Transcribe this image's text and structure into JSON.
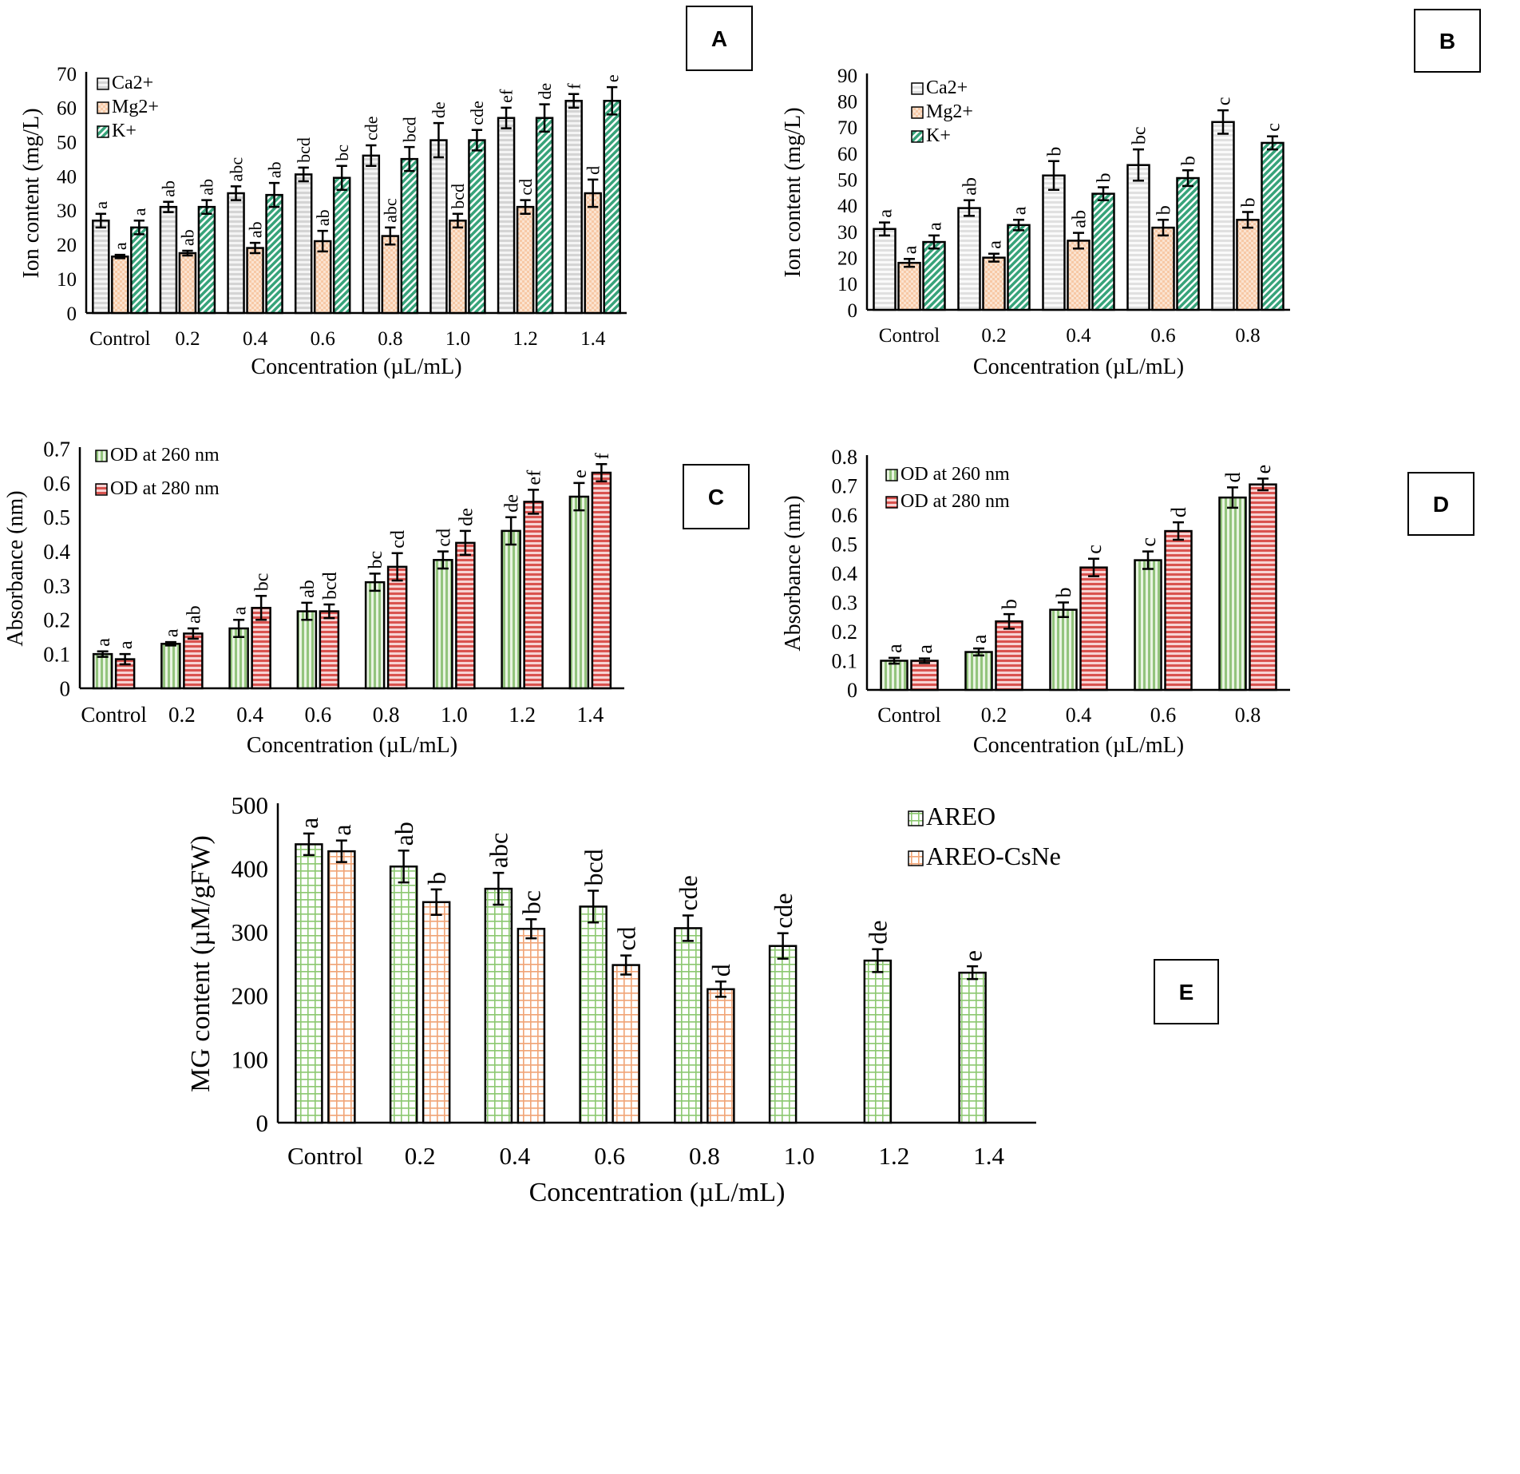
{
  "chart_data": [
    {
      "panel": "A",
      "type": "bar",
      "ylabel": "Ion content (mg/L)",
      "xlabel": "Concentration (µL/mL)",
      "categories": [
        "Control",
        "0.2",
        "0.4",
        "0.6",
        "0.8",
        "1.0",
        "1.2",
        "1.4"
      ],
      "ylim": [
        0,
        70
      ],
      "yticks": [
        "0",
        "10",
        "20",
        "30",
        "40",
        "50",
        "60",
        "70"
      ],
      "legend_position": "top-left",
      "series": [
        {
          "name": "Ca2+",
          "pattern": "hstripe-gray",
          "values": [
            27,
            31,
            35,
            40.5,
            46,
            50.5,
            57,
            62
          ],
          "errors": [
            2,
            1.5,
            2,
            2,
            3,
            5,
            3,
            2
          ],
          "letters": [
            "a",
            "ab",
            "abc",
            "bcd",
            "cde",
            "de",
            "ef",
            "f"
          ]
        },
        {
          "name": "Mg2+",
          "pattern": "check-orange",
          "values": [
            16.5,
            17.5,
            19,
            21,
            22.5,
            27,
            31,
            35
          ],
          "errors": [
            0.5,
            0.7,
            1.5,
            3,
            2.5,
            2,
            2,
            4
          ],
          "letters": [
            "a",
            "ab",
            "ab",
            "ab",
            "abc",
            "bcd",
            "cd",
            "d"
          ]
        },
        {
          "name": "K+",
          "pattern": "diag-green",
          "values": [
            25,
            31,
            34.5,
            39.5,
            45,
            50.5,
            57,
            62
          ],
          "errors": [
            2,
            2,
            3.5,
            3.5,
            3.5,
            3,
            4,
            4
          ],
          "letters": [
            "a",
            "ab",
            "ab",
            "bc",
            "bcd",
            "cde",
            "de",
            "e"
          ]
        }
      ]
    },
    {
      "panel": "B",
      "type": "bar",
      "ylabel": "Ion content (mg/L)",
      "xlabel": "Concentration (µL/mL)",
      "categories": [
        "Control",
        "0.2",
        "0.4",
        "0.6",
        "0.8"
      ],
      "ylim": [
        0,
        90
      ],
      "yticks": [
        "0",
        "10",
        "20",
        "30",
        "40",
        "50",
        "60",
        "70",
        "80",
        "90"
      ],
      "legend_position": "top-left",
      "series": [
        {
          "name": "Ca2+",
          "pattern": "hstripe-lightgray",
          "values": [
            31,
            39,
            51.5,
            55.5,
            72
          ],
          "errors": [
            2.5,
            3,
            5.5,
            6,
            4.5
          ],
          "letters": [
            "a",
            "ab",
            "b",
            "bc",
            "c"
          ]
        },
        {
          "name": "Mg2+",
          "pattern": "check-orange",
          "values": [
            18,
            20,
            26.5,
            31.5,
            34.5
          ],
          "errors": [
            1.5,
            1.5,
            3,
            3,
            3
          ],
          "letters": [
            "a",
            "a",
            "ab",
            "b",
            "b"
          ]
        },
        {
          "name": "K+",
          "pattern": "diag-green",
          "values": [
            26,
            32.5,
            44.5,
            50.5,
            64
          ],
          "errors": [
            2.5,
            2,
            2.5,
            3,
            2.5
          ],
          "letters": [
            "a",
            "a",
            "b",
            "b",
            "c"
          ]
        }
      ]
    },
    {
      "panel": "C",
      "type": "bar",
      "ylabel": "Absorbance (nm)",
      "xlabel": "Concentration (µL/mL)",
      "categories": [
        "Control",
        "0.2",
        "0.4",
        "0.6",
        "0.8",
        "1.0",
        "1.2",
        "1.4"
      ],
      "ylim": [
        0,
        0.7
      ],
      "yticks": [
        "0",
        "0.1",
        "0.2",
        "0.3",
        "0.4",
        "0.5",
        "0.6",
        "0.7"
      ],
      "legend_position": "top-left",
      "series": [
        {
          "name": "OD at 260 nm",
          "pattern": "vstripe-green",
          "values": [
            0.1,
            0.13,
            0.175,
            0.225,
            0.31,
            0.375,
            0.46,
            0.56
          ],
          "errors": [
            0.008,
            0.005,
            0.025,
            0.025,
            0.025,
            0.025,
            0.04,
            0.04
          ],
          "letters": [
            "a",
            "a",
            "a",
            "ab",
            "bc",
            "cd",
            "de",
            "e"
          ]
        },
        {
          "name": "OD at 280 nm",
          "pattern": "hstripe-red",
          "values": [
            0.085,
            0.16,
            0.235,
            0.225,
            0.355,
            0.425,
            0.545,
            0.63
          ],
          "errors": [
            0.015,
            0.015,
            0.035,
            0.02,
            0.04,
            0.035,
            0.035,
            0.025
          ],
          "letters": [
            "a",
            "ab",
            "bc",
            "bcd",
            "cd",
            "de",
            "ef",
            "f"
          ]
        }
      ]
    },
    {
      "panel": "D",
      "type": "bar",
      "ylabel": "Absorbance (nm)",
      "xlabel": "Concentration (µL/mL)",
      "categories": [
        "Control",
        "0.2",
        "0.4",
        "0.6",
        "0.8"
      ],
      "ylim": [
        0,
        0.8
      ],
      "yticks": [
        "0",
        "0.1",
        "0.2",
        "0.3",
        "0.4",
        "0.5",
        "0.6",
        "0.7",
        "0.8"
      ],
      "legend_position": "top-left",
      "series": [
        {
          "name": "OD at 260 nm",
          "pattern": "vstripe-green",
          "values": [
            0.1,
            0.13,
            0.275,
            0.445,
            0.66
          ],
          "errors": [
            0.01,
            0.012,
            0.025,
            0.03,
            0.035
          ],
          "letters": [
            "a",
            "a",
            "b",
            "c",
            "d"
          ]
        },
        {
          "name": "OD at 280 nm",
          "pattern": "hstripe-red",
          "values": [
            0.1,
            0.235,
            0.42,
            0.545,
            0.705
          ],
          "errors": [
            0.008,
            0.025,
            0.03,
            0.03,
            0.02
          ],
          "letters": [
            "a",
            "b",
            "c",
            "d",
            "e"
          ]
        }
      ]
    },
    {
      "panel": "E",
      "type": "bar",
      "ylabel": "MG content (µM/gFW)",
      "xlabel": "Concentration (µL/mL)",
      "categories": [
        "Control",
        "0.2",
        "0.4",
        "0.6",
        "0.8",
        "1.0",
        "1.2",
        "1.4"
      ],
      "ylim": [
        0,
        500
      ],
      "yticks": [
        "0",
        "100",
        "200",
        "300",
        "400",
        "500"
      ],
      "legend_position": "top-right",
      "series": [
        {
          "name": "AREO",
          "pattern": "grid-green",
          "values": [
            438,
            403,
            368,
            340,
            306,
            278,
            255,
            236
          ],
          "errors": [
            17,
            25,
            25,
            25,
            20,
            20,
            18,
            10
          ],
          "letters": [
            "a",
            "ab",
            "abc",
            "bcd",
            "cde",
            "cde",
            "de",
            "e"
          ]
        },
        {
          "name": "AREO-CsNe",
          "pattern": "grid-orange",
          "values": [
            427,
            347,
            305,
            248,
            210,
            null,
            null,
            null
          ],
          "errors": [
            17,
            20,
            15,
            15,
            12,
            null,
            null,
            null
          ],
          "letters": [
            "a",
            "b",
            "bc",
            "cd",
            "d",
            null,
            null,
            null
          ]
        }
      ]
    }
  ]
}
